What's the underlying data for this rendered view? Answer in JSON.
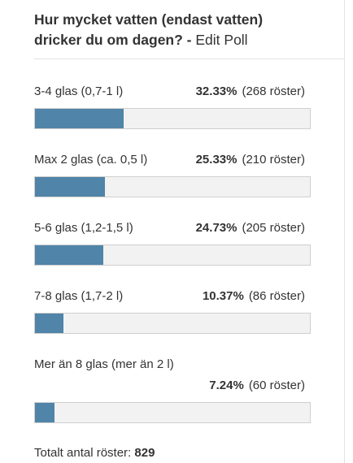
{
  "poll": {
    "question": "Hur mycket vatten (endast vatten) dricker du om dagen?",
    "separator": " - ",
    "edit_label": "Edit Poll",
    "bar_color": "#5084a8",
    "answers": [
      {
        "label": "3-4 glas (0,7-1 l)",
        "percent": "32.33%",
        "votes": "(268 röster)",
        "fraction": 0.3233
      },
      {
        "label": "Max 2 glas (ca. 0,5 l)",
        "percent": "25.33%",
        "votes": "(210 röster)",
        "fraction": 0.2533
      },
      {
        "label": "5-6 glas (1,2-1,5 l)",
        "percent": "24.73%",
        "votes": "(205 röster)",
        "fraction": 0.2473
      },
      {
        "label": "7-8 glas (1,7-2 l)",
        "percent": "10.37%",
        "votes": "(86 röster)",
        "fraction": 0.1037
      },
      {
        "label": "Mer än 8 glas (mer än 2 l)",
        "percent": "7.24%",
        "votes": "(60 röster)",
        "fraction": 0.0724
      }
    ],
    "total_label": "Totalt antal röster:",
    "total_votes": "829"
  }
}
